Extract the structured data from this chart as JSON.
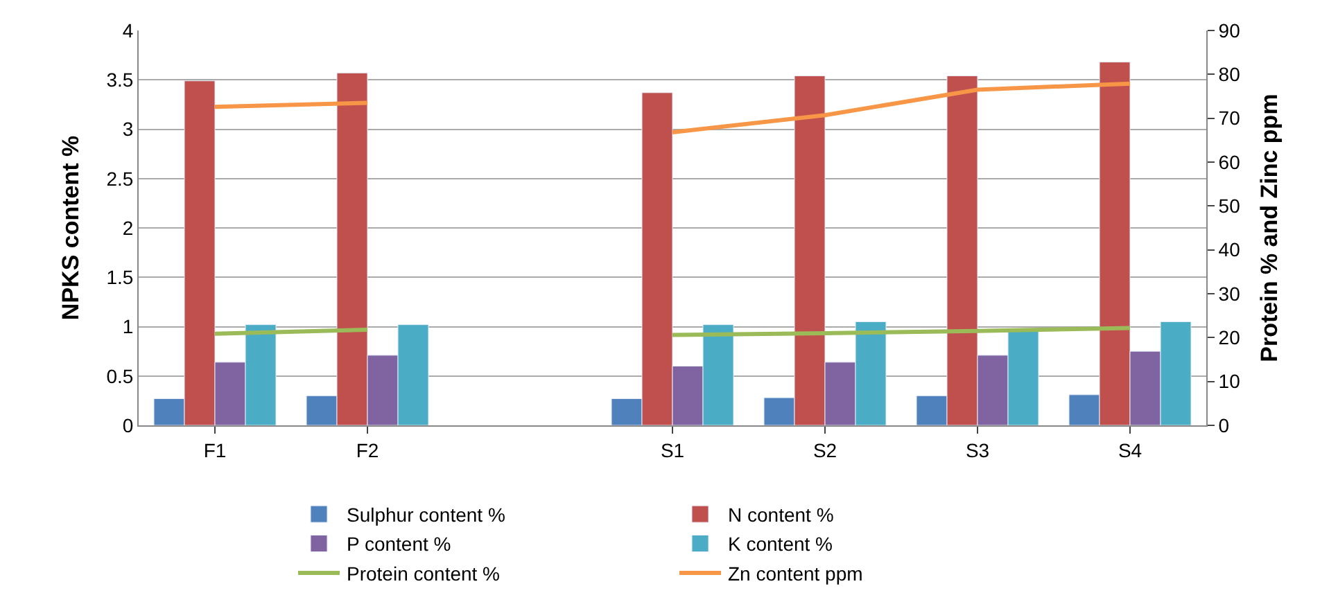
{
  "chart_data": {
    "type": "bar",
    "categories": [
      "F1",
      "F2",
      null,
      "S1",
      "S2",
      "S3",
      "S4"
    ],
    "ylabel": "NPKS content %",
    "y2label": "Protein % and Zinc ppm",
    "ylim": [
      0,
      4
    ],
    "yticks": [
      0,
      0.5,
      1,
      1.5,
      2,
      2.5,
      3,
      3.5,
      4
    ],
    "y2lim": [
      0,
      90
    ],
    "y2ticks": [
      0,
      10,
      20,
      30,
      40,
      50,
      60,
      70,
      80,
      90
    ],
    "grid": "y",
    "legend": "bottom",
    "series": [
      {
        "name": "Sulphur content %",
        "color": "#4f81bd",
        "values": [
          0.27,
          0.3,
          null,
          0.27,
          0.28,
          0.3,
          0.31
        ]
      },
      {
        "name": "N content %",
        "color": "#c0504d",
        "values": [
          3.49,
          3.57,
          null,
          3.37,
          3.54,
          3.54,
          3.68
        ]
      },
      {
        "name": "P content %",
        "color": "#8064a2",
        "values": [
          0.64,
          0.71,
          null,
          0.6,
          0.64,
          0.71,
          0.75
        ]
      },
      {
        "name": "K content %",
        "color": "#4bacc6",
        "values": [
          1.02,
          1.02,
          null,
          1.02,
          1.05,
          0.97,
          1.05
        ]
      },
      {
        "name": "Protein content %",
        "type": "line",
        "axis": "y2",
        "color": "#9bbb59",
        "values": [
          20.9,
          21.8,
          null,
          20.6,
          21.0,
          21.5,
          22.2
        ]
      },
      {
        "name": "Zn content ppm",
        "type": "line",
        "axis": "y2",
        "color": "#f79646",
        "values": [
          72.6,
          73.5,
          null,
          66.8,
          70.7,
          76.5,
          77.9
        ]
      }
    ]
  }
}
